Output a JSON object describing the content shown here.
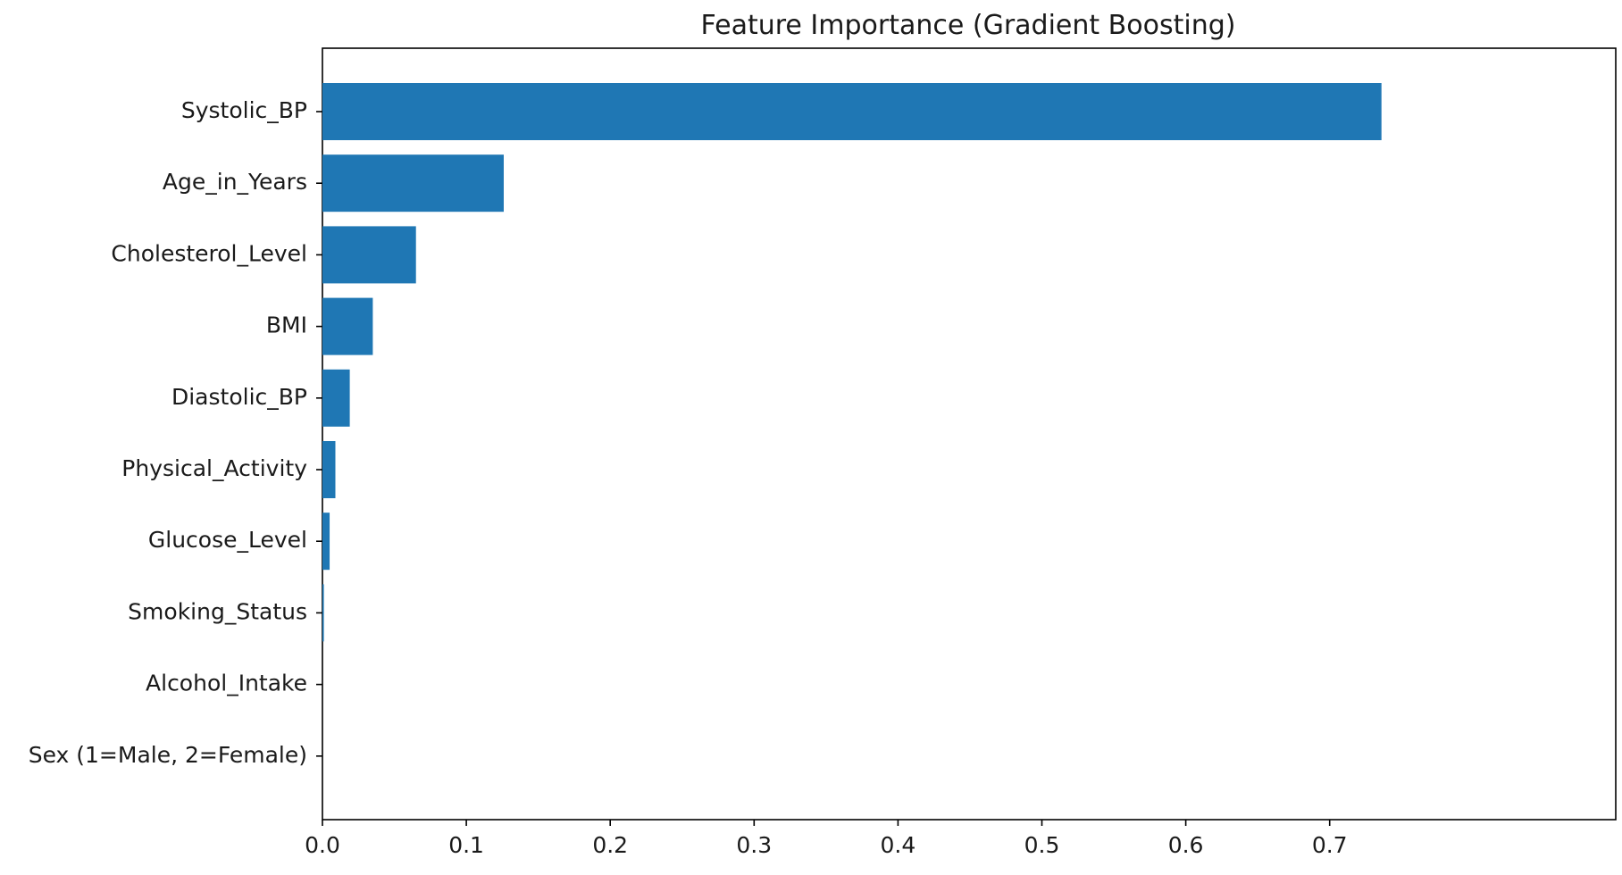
{
  "chart_data": {
    "type": "bar",
    "orientation": "horizontal",
    "title": "Feature Importance (Gradient Boosting)",
    "xlabel": "",
    "ylabel": "",
    "categories": [
      "Systolic_BP",
      "Age_in_Years",
      "Cholesterol_Level",
      "BMI",
      "Diastolic_BP",
      "Physical_Activity",
      "Glucose_Level",
      "Smoking_Status",
      "Alcohol_Intake",
      "Sex (1=Male, 2=Female)"
    ],
    "values": [
      0.736,
      0.126,
      0.065,
      0.035,
      0.019,
      0.009,
      0.005,
      0.001,
      0.0,
      0.0
    ],
    "xlim": [
      0.0,
      0.77
    ],
    "xticks": [
      0.0,
      0.1,
      0.2,
      0.3,
      0.4,
      0.5,
      0.6,
      0.7
    ],
    "xtick_labels": [
      "0.0",
      "0.1",
      "0.2",
      "0.3",
      "0.4",
      "0.5",
      "0.6",
      "0.7"
    ],
    "grid": false,
    "colors": {
      "bar": "#1f77b4",
      "axis": "#000000",
      "text": "#1a1a1a"
    }
  }
}
